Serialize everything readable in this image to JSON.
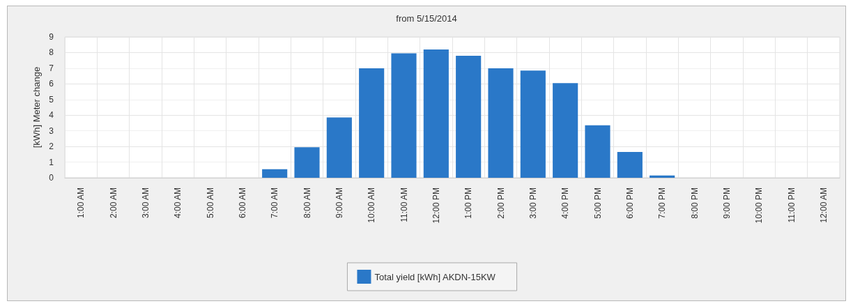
{
  "chart_data": {
    "type": "bar",
    "title": "from 5/15/2014",
    "ylabel": "[kWh] Meter change",
    "categories": [
      "1:00 AM",
      "2:00 AM",
      "3:00 AM",
      "4:00 AM",
      "5:00 AM",
      "6:00 AM",
      "7:00 AM",
      "8:00 AM",
      "9:00 AM",
      "10:00 AM",
      "11:00 AM",
      "12:00 PM",
      "1:00 PM",
      "2:00 PM",
      "3:00 PM",
      "4:00 PM",
      "5:00 PM",
      "6:00 PM",
      "7:00 PM",
      "8:00 PM",
      "9:00 PM",
      "10:00 PM",
      "11:00 PM",
      "12:00 AM"
    ],
    "series": [
      {
        "name": "Total yield [kWh] AKDN-15KW",
        "color": "#2a78c8",
        "values": [
          0,
          0,
          0,
          0,
          0,
          0,
          0.55,
          1.95,
          3.85,
          7.0,
          7.95,
          8.2,
          7.8,
          7.0,
          6.85,
          6.05,
          3.35,
          1.65,
          0.15,
          0,
          0,
          0,
          0,
          0
        ]
      }
    ],
    "ylim": [
      0,
      9
    ],
    "yticks": [
      0,
      1,
      2,
      3,
      4,
      5,
      6,
      7,
      8,
      9
    ],
    "grid": true,
    "legend": "bottom"
  }
}
